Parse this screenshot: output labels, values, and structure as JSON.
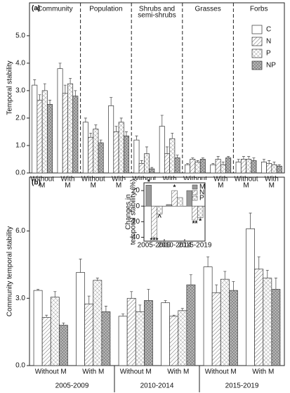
{
  "chart_data": [
    {
      "type": "grouped-bar",
      "panel_label": "(a)",
      "ylabel": "Temporal stability",
      "groups": [
        [
          "Community"
        ],
        [
          "Population"
        ],
        [
          "Shrubs and",
          "semi-shrubs"
        ],
        [
          "Grasses"
        ],
        [
          "Forbs"
        ]
      ],
      "subgroups": [
        [
          "Without",
          "M"
        ],
        [
          "With",
          "M"
        ]
      ],
      "ylim": [
        0,
        6.2
      ],
      "yticks": [
        {
          "value": 0,
          "label": "0.0"
        },
        {
          "value": 1,
          "label": "1.0"
        },
        {
          "value": 2,
          "label": "2.0"
        },
        {
          "value": 3,
          "label": "3.0"
        },
        {
          "value": 4,
          "label": "4.0"
        },
        {
          "value": 5,
          "label": "5.0"
        }
      ],
      "legend": "upper right",
      "series": [
        {
          "name": "C",
          "color": "#ffffff",
          "pattern": "none",
          "values": [
            3.2,
            3.8,
            1.85,
            2.45,
            1.2,
            1.7,
            0.3,
            0.3,
            0.4,
            0.4
          ],
          "errors": [
            0.2,
            0.2,
            0.15,
            0.3,
            0.15,
            0.4,
            0.05,
            0.05,
            0.1,
            0.1
          ]
        },
        {
          "name": "N",
          "color": "#ffffff",
          "pattern": "hatch",
          "values": [
            2.65,
            2.9,
            1.3,
            1.5,
            0.35,
            0.7,
            0.5,
            0.5,
            0.5,
            0.35
          ],
          "errors": [
            0.2,
            0.3,
            0.15,
            0.2,
            0.1,
            0.25,
            0.05,
            0.1,
            0.1,
            0.1
          ]
        },
        {
          "name": "P",
          "color": "#ffffff",
          "pattern": "cross",
          "values": [
            3.0,
            3.25,
            1.6,
            1.85,
            0.7,
            1.25,
            0.4,
            0.3,
            0.5,
            0.3
          ],
          "errors": [
            0.25,
            0.2,
            0.15,
            0.15,
            0.25,
            0.2,
            0.05,
            0.1,
            0.1,
            0.1
          ]
        },
        {
          "name": "NP",
          "color": "#cfcfcf",
          "pattern": "dense-cross",
          "values": [
            2.5,
            2.8,
            1.1,
            1.35,
            0.15,
            0.55,
            0.5,
            0.55,
            0.45,
            0.25
          ],
          "errors": [
            0.15,
            0.2,
            0.1,
            0.15,
            0.05,
            0.1,
            0.05,
            0.05,
            0.1,
            0.05
          ]
        }
      ]
    },
    {
      "type": "grouped-bar",
      "panel_label": "(b)",
      "ylabel": "Community temporal stability",
      "groups": [
        [
          "2005-2009"
        ],
        [
          "2010-2014"
        ],
        [
          "2015-2019"
        ]
      ],
      "subgroups": [
        [
          "Without M"
        ],
        [
          "With M"
        ]
      ],
      "ylim": [
        0,
        8.4
      ],
      "yticks": [
        {
          "value": 0,
          "label": "0.0"
        },
        {
          "value": 3,
          "label": "3.0"
        },
        {
          "value": 6,
          "label": "6.0"
        }
      ],
      "series": [
        {
          "name": "C",
          "color": "#ffffff",
          "pattern": "none",
          "values": [
            3.35,
            4.15,
            2.2,
            2.8,
            4.4,
            6.1
          ],
          "errors": [
            0.05,
            0.6,
            0.1,
            0.1,
            0.45,
            0.7
          ]
        },
        {
          "name": "N",
          "color": "#ffffff",
          "pattern": "hatch",
          "values": [
            2.15,
            2.75,
            3.0,
            2.2,
            3.25,
            4.3
          ],
          "errors": [
            0.1,
            0.35,
            0.3,
            0.05,
            0.35,
            0.55
          ]
        },
        {
          "name": "P",
          "color": "#ffffff",
          "pattern": "cross",
          "values": [
            3.05,
            3.8,
            2.4,
            2.45,
            3.85,
            3.9
          ],
          "errors": [
            0.25,
            0.1,
            0.3,
            0.1,
            0.35,
            0.35
          ]
        },
        {
          "name": "NP",
          "color": "#cfcfcf",
          "pattern": "dense-cross",
          "values": [
            1.8,
            2.4,
            2.9,
            3.6,
            3.35,
            3.4
          ],
          "errors": [
            0.1,
            0.25,
            0.5,
            0.45,
            0.4,
            0.5
          ]
        }
      ]
    },
    {
      "type": "inset-bar",
      "ylabel": [
        "Changes in",
        "temporal stability (%)"
      ],
      "categories": [
        "2005-2009",
        "2010-2014",
        "2015-2019"
      ],
      "ylim": [
        -45,
        30
      ],
      "yticks": [
        -40,
        -20,
        0,
        20
      ],
      "legend": "upper right",
      "series": [
        {
          "name": "M",
          "color": "#9a9a9a",
          "pattern": "none",
          "values": [
            27,
            2,
            20
          ],
          "marks": [
            "*",
            null,
            null
          ]
        },
        {
          "name": "N",
          "color": "#ffffff",
          "pattern": "hatch",
          "values": [
            -40,
            20,
            -18
          ],
          "marks": [
            "***",
            "*",
            "**"
          ]
        },
        {
          "name": "P",
          "color": "#ffffff",
          "pattern": "cross",
          "values": [
            -10,
            11,
            -15
          ],
          "marks": [
            "^",
            null,
            "*"
          ]
        }
      ]
    }
  ]
}
